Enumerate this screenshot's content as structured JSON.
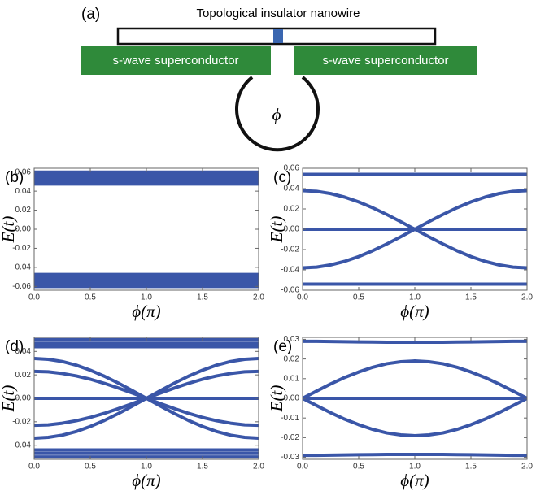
{
  "schematic": {
    "panel_label": "(a)",
    "title": "Topological insulator nanowire",
    "left_label": "s-wave superconductor",
    "right_label": "s-wave superconductor",
    "symbol": "ϕ"
  },
  "chart_data": [
    {
      "type": "line",
      "panel_label": "(b)",
      "y_label": "E(t)",
      "x_label": "ϕ(π)",
      "color": "#3a56a8",
      "x": [
        0,
        0.5,
        1,
        1.5,
        2
      ],
      "xlim": [
        0,
        2
      ],
      "xticks": [
        {
          "value": 0,
          "label": "0.0"
        },
        0.5,
        {
          "value": 1,
          "label": "1.0"
        },
        1.5,
        {
          "value": 2,
          "label": "2.0"
        }
      ],
      "ylim": [
        -0.064,
        0.064
      ],
      "yticks": [
        -0.06,
        -0.04,
        -0.02,
        {
          "value": 0,
          "label": "0.00"
        },
        0.02,
        0.04,
        0.06
      ],
      "series": [
        {
          "values": [
            0.06,
            0.06,
            0.06,
            0.06,
            0.06
          ]
        },
        {
          "values": [
            0.0575,
            0.0575,
            0.0575,
            0.0575,
            0.0575
          ]
        },
        {
          "values": [
            0.055,
            0.055,
            0.055,
            0.055,
            0.055
          ]
        },
        {
          "values": [
            0.0525,
            0.0525,
            0.0525,
            0.0525,
            0.0525
          ]
        },
        {
          "values": [
            0.05,
            0.05,
            0.05,
            0.05,
            0.05
          ]
        },
        {
          "values": [
            0.0475,
            0.0475,
            0.0475,
            0.0475,
            0.0475
          ]
        },
        {
          "values": [
            -0.06,
            -0.06,
            -0.06,
            -0.06,
            -0.06
          ]
        },
        {
          "values": [
            -0.0575,
            -0.0575,
            -0.0575,
            -0.0575,
            -0.0575
          ]
        },
        {
          "values": [
            -0.055,
            -0.055,
            -0.055,
            -0.055,
            -0.055
          ]
        },
        {
          "values": [
            -0.0525,
            -0.0525,
            -0.0525,
            -0.0525,
            -0.0525
          ]
        },
        {
          "values": [
            -0.05,
            -0.05,
            -0.05,
            -0.05,
            -0.05
          ]
        },
        {
          "values": [
            -0.0475,
            -0.0475,
            -0.0475,
            -0.0475,
            -0.0475
          ]
        }
      ]
    },
    {
      "type": "line",
      "panel_label": "(c)",
      "y_label": "E(t)",
      "x_label": "ϕ(π)",
      "color": "#3a56a8",
      "x": [
        0,
        0.125,
        0.25,
        0.375,
        0.5,
        0.625,
        0.75,
        0.875,
        1,
        1.125,
        1.25,
        1.375,
        1.5,
        1.625,
        1.75,
        1.875,
        2
      ],
      "xlim": [
        0,
        2
      ],
      "xticks": [
        {
          "value": 0,
          "label": "0.0"
        },
        0.5,
        {
          "value": 1,
          "label": "1.0"
        },
        1.5,
        {
          "value": 2,
          "label": "2.0"
        }
      ],
      "ylim": [
        -0.06,
        0.06
      ],
      "yticks": [
        -0.06,
        -0.04,
        -0.02,
        {
          "value": 0,
          "label": "0.00"
        },
        0.02,
        0.04,
        0.06
      ],
      "series": [
        {
          "values": [
            0.054,
            0.054,
            0.054,
            0.054,
            0.054,
            0.054,
            0.054,
            0.054,
            0.054,
            0.054,
            0.054,
            0.054,
            0.054,
            0.054,
            0.054,
            0.054,
            0.054
          ]
        },
        {
          "values": [
            -0.054,
            -0.054,
            -0.054,
            -0.054,
            -0.054,
            -0.054,
            -0.054,
            -0.054,
            -0.054,
            -0.054,
            -0.054,
            -0.054,
            -0.054,
            -0.054,
            -0.054,
            -0.054,
            -0.054
          ]
        },
        {
          "values": [
            0,
            0,
            0,
            0,
            0,
            0,
            0,
            0,
            0,
            0,
            0,
            0,
            0,
            0,
            0,
            0,
            0
          ]
        },
        {
          "values": [
            0.038,
            0.0373,
            0.0351,
            0.0316,
            0.0269,
            0.0211,
            0.0145,
            0.0074,
            0,
            -0.0074,
            -0.0145,
            -0.0211,
            -0.0269,
            -0.0316,
            -0.0351,
            -0.0373,
            -0.038
          ]
        },
        {
          "values": [
            -0.038,
            -0.0373,
            -0.0351,
            -0.0316,
            -0.0269,
            -0.0211,
            -0.0145,
            -0.0074,
            0,
            0.0074,
            0.0145,
            0.0211,
            0.0269,
            0.0316,
            0.0351,
            0.0373,
            0.038
          ]
        }
      ]
    },
    {
      "type": "line",
      "panel_label": "(d)",
      "y_label": "E(t)",
      "x_label": "ϕ(π)",
      "color": "#3a56a8",
      "x": [
        0,
        0.125,
        0.25,
        0.375,
        0.5,
        0.625,
        0.75,
        0.875,
        1,
        1.125,
        1.25,
        1.375,
        1.5,
        1.625,
        1.75,
        1.875,
        2
      ],
      "xlim": [
        0,
        2
      ],
      "xticks": [
        {
          "value": 0,
          "label": "0.0"
        },
        0.5,
        {
          "value": 1,
          "label": "1.0"
        },
        1.5,
        {
          "value": 2,
          "label": "2.0"
        }
      ],
      "ylim": [
        -0.052,
        0.052
      ],
      "yticks": [
        -0.04,
        -0.02,
        {
          "value": 0,
          "label": "0.00"
        },
        0.02,
        0.04
      ],
      "series": [
        {
          "values": [
            0.05,
            0.05,
            0.05,
            0.05,
            0.05,
            0.05,
            0.05,
            0.05,
            0.05,
            0.05,
            0.05,
            0.05,
            0.05,
            0.05,
            0.05,
            0.05,
            0.05
          ]
        },
        {
          "values": [
            0.047,
            0.047,
            0.047,
            0.047,
            0.047,
            0.047,
            0.047,
            0.047,
            0.047,
            0.047,
            0.047,
            0.047,
            0.047,
            0.047,
            0.047,
            0.047,
            0.047
          ]
        },
        {
          "values": [
            0.044,
            0.044,
            0.044,
            0.044,
            0.044,
            0.044,
            0.044,
            0.044,
            0.044,
            0.044,
            0.044,
            0.044,
            0.044,
            0.044,
            0.044,
            0.044,
            0.044
          ]
        },
        {
          "values": [
            -0.05,
            -0.05,
            -0.05,
            -0.05,
            -0.05,
            -0.05,
            -0.05,
            -0.05,
            -0.05,
            -0.05,
            -0.05,
            -0.05,
            -0.05,
            -0.05,
            -0.05,
            -0.05,
            -0.05
          ]
        },
        {
          "values": [
            -0.047,
            -0.047,
            -0.047,
            -0.047,
            -0.047,
            -0.047,
            -0.047,
            -0.047,
            -0.047,
            -0.047,
            -0.047,
            -0.047,
            -0.047,
            -0.047,
            -0.047,
            -0.047,
            -0.047
          ]
        },
        {
          "values": [
            -0.044,
            -0.044,
            -0.044,
            -0.044,
            -0.044,
            -0.044,
            -0.044,
            -0.044,
            -0.044,
            -0.044,
            -0.044,
            -0.044,
            -0.044,
            -0.044,
            -0.044,
            -0.044,
            -0.044
          ]
        },
        {
          "values": [
            0,
            0,
            0,
            0,
            0,
            0,
            0,
            0,
            0,
            0,
            0,
            0,
            0,
            0,
            0,
            0,
            0
          ]
        },
        {
          "values": [
            0.034,
            0.0333,
            0.0314,
            0.0283,
            0.024,
            0.0189,
            0.013,
            0.0066,
            0,
            -0.0066,
            -0.013,
            -0.0189,
            -0.024,
            -0.0283,
            -0.0314,
            -0.0333,
            -0.034
          ]
        },
        {
          "values": [
            -0.034,
            -0.0333,
            -0.0314,
            -0.0283,
            -0.024,
            -0.0189,
            -0.013,
            -0.0066,
            0,
            0.0066,
            0.013,
            0.0189,
            0.024,
            0.0283,
            0.0314,
            0.0333,
            0.034
          ]
        },
        {
          "values": [
            0.023,
            0.0226,
            0.0212,
            0.0191,
            0.0163,
            0.0128,
            0.0088,
            0.0045,
            0,
            -0.0045,
            -0.0088,
            -0.0128,
            -0.0163,
            -0.0191,
            -0.0212,
            -0.0226,
            -0.023
          ]
        },
        {
          "values": [
            -0.023,
            -0.0226,
            -0.0212,
            -0.0191,
            -0.0163,
            -0.0128,
            -0.0088,
            -0.0045,
            0,
            0.0045,
            0.0088,
            0.0128,
            0.0163,
            0.0191,
            0.0212,
            0.0226,
            0.023
          ]
        }
      ]
    },
    {
      "type": "line",
      "panel_label": "(e)",
      "y_label": "E(t)",
      "x_label": "ϕ(π)",
      "color": "#3a56a8",
      "x": [
        0,
        0.125,
        0.25,
        0.375,
        0.5,
        0.625,
        0.75,
        0.875,
        1,
        1.125,
        1.25,
        1.375,
        1.5,
        1.625,
        1.75,
        1.875,
        2
      ],
      "xlim": [
        0,
        2
      ],
      "xticks": [
        {
          "value": 0,
          "label": "0.0"
        },
        0.5,
        {
          "value": 1,
          "label": "1.0"
        },
        1.5,
        {
          "value": 2,
          "label": "2.0"
        }
      ],
      "ylim": [
        -0.031,
        0.031
      ],
      "yticks": [
        -0.03,
        -0.02,
        -0.01,
        {
          "value": 0,
          "label": "0.00"
        },
        0.01,
        0.02,
        0.03
      ],
      "series": [
        {
          "values": [
            0.029,
            0.029,
            0.0289,
            0.0288,
            0.0287,
            0.0286,
            0.0285,
            0.0285,
            0.0285,
            0.0285,
            0.0285,
            0.0286,
            0.0287,
            0.0288,
            0.0289,
            0.029,
            0.029
          ]
        },
        {
          "values": [
            -0.029,
            -0.029,
            -0.0289,
            -0.0288,
            -0.0287,
            -0.0286,
            -0.0285,
            -0.0285,
            -0.0285,
            -0.0285,
            -0.0285,
            -0.0286,
            -0.0287,
            -0.0288,
            -0.0289,
            -0.029,
            -0.029
          ]
        },
        {
          "values": [
            0,
            0,
            0,
            0,
            0,
            0,
            0,
            0,
            0,
            0,
            0,
            0,
            0,
            0,
            0,
            0,
            0
          ]
        },
        {
          "values": [
            0,
            0.0037,
            0.0073,
            0.0106,
            0.0134,
            0.0158,
            0.0176,
            0.0186,
            0.019,
            0.0186,
            0.0176,
            0.0158,
            0.0134,
            0.0106,
            0.0073,
            0.0037,
            0
          ]
        },
        {
          "values": [
            0,
            -0.0037,
            -0.0073,
            -0.0106,
            -0.0134,
            -0.0158,
            -0.0176,
            -0.0186,
            -0.019,
            -0.0186,
            -0.0176,
            -0.0158,
            -0.0134,
            -0.0106,
            -0.0073,
            -0.0037,
            0
          ]
        }
      ]
    }
  ]
}
